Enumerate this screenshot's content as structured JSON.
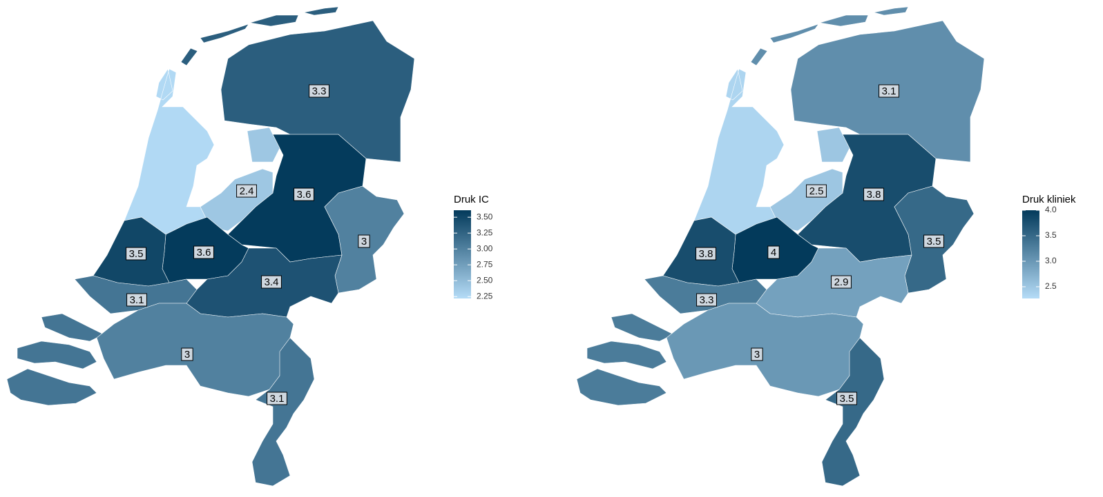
{
  "maps": [
    {
      "legend_title": "Druk IC",
      "values": [
        3.3,
        3.6,
        2.4,
        3.6,
        3.5,
        3,
        3.4,
        3.1,
        3,
        3.1
      ],
      "other_values": [
        2.25
      ],
      "clim": [
        2.22,
        3.61
      ],
      "ticks": [
        {
          "value": 2.25,
          "label": "2.25"
        },
        {
          "value": 2.5,
          "label": "2.50"
        },
        {
          "value": 2.75,
          "label": "2.75"
        },
        {
          "value": 3,
          "label": "3.00"
        },
        {
          "value": 3.25,
          "label": "3.25"
        },
        {
          "value": 3.5,
          "label": "3.50"
        }
      ],
      "low_color": "#b5dcf7",
      "high_color": "#033a5b"
    },
    {
      "legend_title": "Druk kliniek",
      "values": [
        3.1,
        3.8,
        2.5,
        4,
        3.8,
        3.5,
        2.9,
        3.3,
        3,
        3.5
      ],
      "other_values": [
        2.35
      ],
      "clim": [
        2.27,
        4.0
      ],
      "ticks": [
        2.5,
        {
          "value": 3,
          "label": "3.0"
        },
        3.5,
        {
          "value": 4,
          "label": "4.0"
        }
      ],
      "low_color": "#b5dcf7",
      "high_color": "#033a5b"
    }
  ]
}
